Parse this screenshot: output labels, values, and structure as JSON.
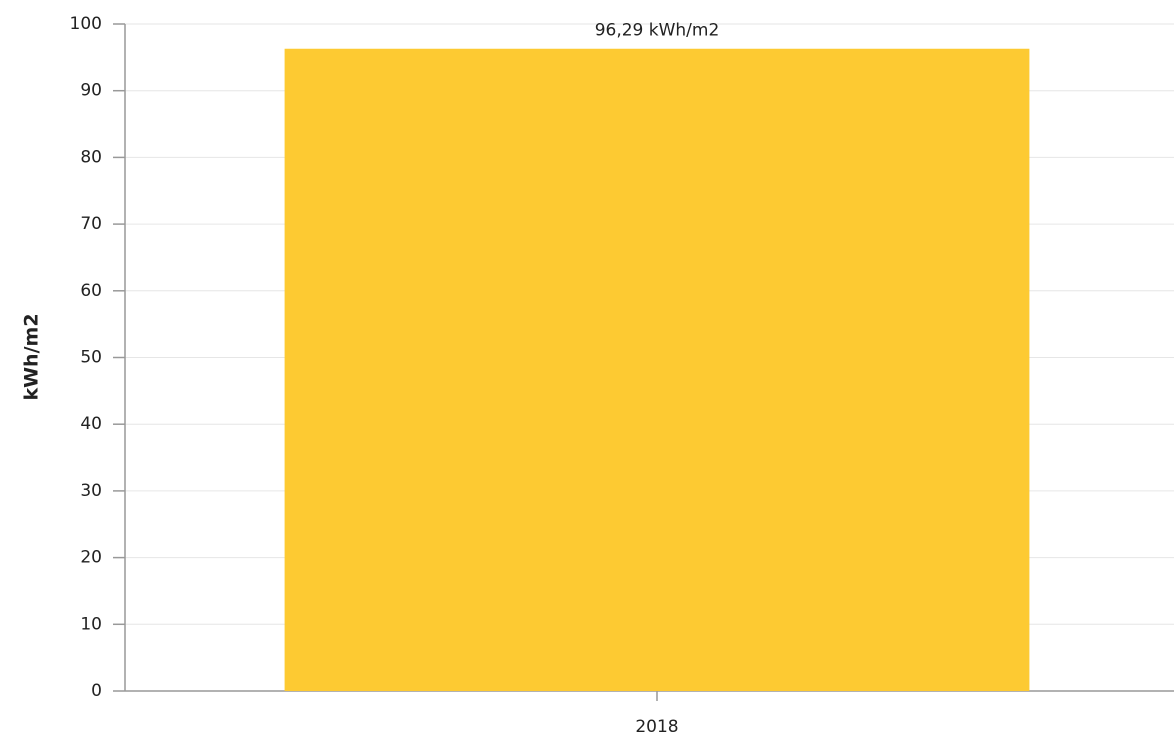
{
  "chart_data": {
    "type": "bar",
    "y_label": "kWh/m2",
    "categories": [
      "2018"
    ],
    "values": [
      96.29
    ],
    "value_labels": [
      "96,29 kWh/m2"
    ],
    "color": "#fdca32",
    "ylim": [
      0,
      100
    ],
    "yticks": [
      0,
      10,
      20,
      30,
      40,
      50,
      60,
      70,
      80,
      90,
      100
    ],
    "grid": true
  }
}
